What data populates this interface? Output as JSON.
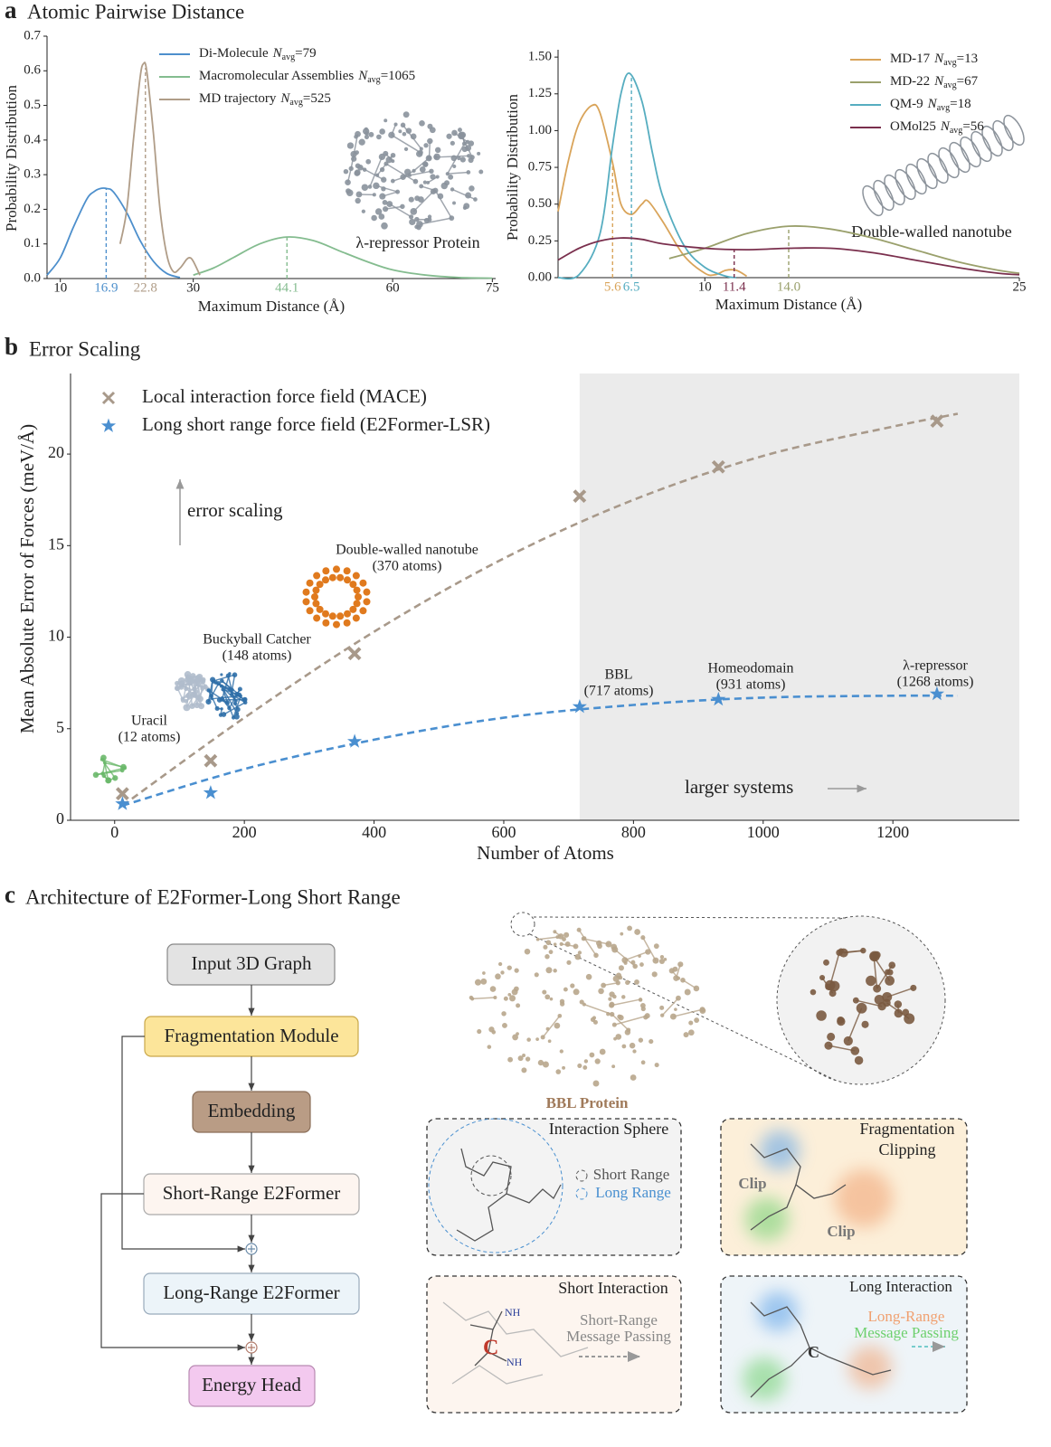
{
  "panels": [
    {
      "label": "a",
      "title": "Atomic Pairwise Distance"
    },
    {
      "label": "b",
      "title": "Error Scaling"
    },
    {
      "label": "c",
      "title": "Architecture of E2Former-Long Short Range"
    }
  ],
  "chart_data": [
    {
      "type": "line",
      "xlabel": "Maximum Distance (Å)",
      "ylabel": "Probability Distribution",
      "xlim": [
        8,
        75.5
      ],
      "ylim": [
        0,
        0.7
      ],
      "xticks": [
        10,
        30,
        60,
        75
      ],
      "yticks": [
        {
          "value": 0,
          "label": "0.0"
        },
        0.1,
        0.2,
        0.3,
        0.4,
        0.5,
        0.6,
        0.7
      ],
      "legend": "upper right",
      "n_label": {
        "symbol": "N",
        "subscript": "avg",
        "sign": "="
      },
      "annotations": [
        "λ-repressor Protein"
      ],
      "series": [
        {
          "name": "Di-Molecule",
          "n_avg": 79,
          "color": "#4d8fcc",
          "mean": 16.9,
          "x": [
            8,
            10,
            12,
            14,
            15,
            16,
            17,
            18,
            20,
            22,
            24,
            26,
            28
          ],
          "values": [
            0.01,
            0.06,
            0.15,
            0.23,
            0.25,
            0.26,
            0.26,
            0.25,
            0.19,
            0.11,
            0.05,
            0.015,
            0.003
          ]
        },
        {
          "name": "Macromolecular Assemblies",
          "n_avg": 1065,
          "color": "#84bc8f",
          "mean": 44.1,
          "x": [
            30,
            33,
            36,
            40,
            44,
            48,
            52,
            56,
            60,
            65,
            70,
            75
          ],
          "values": [
            0.01,
            0.03,
            0.06,
            0.1,
            0.12,
            0.11,
            0.08,
            0.05,
            0.025,
            0.01,
            0.003,
            0.001
          ]
        },
        {
          "name": "MD trajectory",
          "n_avg": 525,
          "color": "#b09d88",
          "mean": 22.8,
          "x": [
            19,
            20,
            21,
            22,
            22.5,
            23,
            24,
            25,
            26,
            27,
            28,
            29,
            29.5,
            30,
            31
          ],
          "values": [
            0.1,
            0.2,
            0.4,
            0.58,
            0.62,
            0.6,
            0.42,
            0.2,
            0.07,
            0.02,
            0.03,
            0.055,
            0.06,
            0.05,
            0.01
          ]
        }
      ]
    },
    {
      "type": "line",
      "xlabel": "Maximum Distance (Å)",
      "ylabel": "Probability Distribution",
      "xlim": [
        3,
        25
      ],
      "ylim": [
        0,
        1.55
      ],
      "xticks": [
        10,
        25
      ],
      "yticks": [
        {
          "value": 0,
          "label": "0.00"
        },
        0.25,
        {
          "value": 0.5,
          "label": "0.50"
        },
        0.75,
        {
          "value": 1,
          "label": "1.00"
        },
        1.25,
        {
          "value": 1.5,
          "label": "1.50"
        }
      ],
      "legend": "upper right",
      "n_label": {
        "symbol": "N",
        "subscript": "avg",
        "sign": "="
      },
      "annotations": [
        "Double-walled nanotube"
      ],
      "series": [
        {
          "name": "MD-17",
          "n_avg": 13,
          "color": "#d9a45a",
          "mean": 5.6,
          "x": [
            3,
            3.5,
            4,
            4.6,
            5,
            5.6,
            6,
            6.5,
            7,
            7.3,
            8,
            9,
            10,
            10.5,
            11,
            11.5,
            12
          ],
          "values": [
            0.45,
            0.8,
            1.05,
            1.17,
            1.12,
            0.78,
            0.5,
            0.43,
            0.5,
            0.52,
            0.38,
            0.15,
            0.03,
            0.02,
            0.05,
            0.05,
            0.01
          ]
        },
        {
          "name": "MD-22",
          "n_avg": 67,
          "color": "#9aa06c",
          "mean": 14.0,
          "mean_label": "14.0",
          "x": [
            8.3,
            10,
            12,
            14,
            16,
            18,
            20,
            22,
            24,
            25
          ],
          "values": [
            0.13,
            0.2,
            0.3,
            0.35,
            0.33,
            0.27,
            0.19,
            0.11,
            0.05,
            0.03
          ]
        },
        {
          "name": "QM-9",
          "n_avg": 18,
          "color": "#56adc0",
          "mean": 6.5,
          "x": [
            3,
            4,
            5,
            5.6,
            6,
            6.4,
            7,
            7.5,
            8,
            9,
            10,
            11,
            11.5
          ],
          "values": [
            0,
            0.02,
            0.3,
            0.9,
            1.25,
            1.39,
            1.2,
            0.85,
            0.55,
            0.22,
            0.07,
            0.01,
            0
          ]
        },
        {
          "name": "OMol25",
          "n_avg": 56,
          "color": "#7a2f4d",
          "mean": 11.4,
          "x": [
            3,
            4,
            5,
            6,
            7,
            8,
            10,
            12,
            14,
            16,
            18,
            20,
            22,
            24,
            25
          ],
          "values": [
            0.12,
            0.2,
            0.25,
            0.27,
            0.26,
            0.23,
            0.2,
            0.19,
            0.2,
            0.2,
            0.17,
            0.12,
            0.07,
            0.03,
            0.02
          ]
        }
      ]
    },
    {
      "type": "scatter",
      "xlabel": "Number of Atoms",
      "ylabel": "Mean Absolute Error of Forces (meV/Å)",
      "xlim": [
        -68,
        1395
      ],
      "ylim": [
        0,
        24.4
      ],
      "xticks": [
        0,
        200,
        400,
        600,
        800,
        1000,
        1200
      ],
      "yticks": [
        0,
        5,
        10,
        15,
        20
      ],
      "legend": "upper left",
      "shade_from": 717,
      "annotations": [
        "error scaling",
        "larger systems"
      ],
      "system_labels": [
        {
          "name": "Uracil",
          "atoms": "(12 atoms)"
        },
        {
          "name": "Buckyball Catcher",
          "atoms": "(148 atoms)"
        },
        {
          "name": "Double-walled nanotube",
          "atoms": "(370 atoms)"
        },
        {
          "name": "BBL",
          "atoms": "(717 atoms)"
        },
        {
          "name": "Homeodomain",
          "atoms": "(931 atoms)"
        },
        {
          "name": "λ-repressor",
          "atoms": "(1268 atoms)"
        }
      ],
      "series": [
        {
          "name": "Local interaction force field (MACE)",
          "marker": "x",
          "color": "#a8998a",
          "x": [
            12,
            148,
            370,
            717,
            931,
            1268
          ],
          "values": [
            1.45,
            3.25,
            9.1,
            17.7,
            19.3,
            21.8
          ],
          "fit": {
            "x": [
              12,
              200,
              400,
              600,
              800,
              1000,
              1200,
              1300
            ],
            "values": [
              0.8,
              5.6,
              10.3,
              14.3,
              17.5,
              19.9,
              21.5,
              22.2
            ]
          }
        },
        {
          "name": "Long short range force field (E2Former-LSR)",
          "marker": "star",
          "color": "#4a8fd0",
          "x": [
            12,
            148,
            370,
            717,
            931,
            1268
          ],
          "values": [
            0.9,
            1.5,
            4.3,
            6.2,
            6.6,
            6.9
          ],
          "fit": {
            "x": [
              12,
              200,
              400,
              600,
              800,
              1000,
              1200,
              1300
            ],
            "values": [
              0.8,
              2.8,
              4.4,
              5.6,
              6.3,
              6.7,
              6.8,
              6.8
            ]
          }
        }
      ]
    }
  ],
  "diagram": {
    "flow": [
      "Input 3D Graph",
      "Fragmentation Module",
      "Embedding",
      "Short-Range E2Former",
      "Long-Range E2Former",
      "Energy Head"
    ],
    "protein": "BBL Protein",
    "boxes": [
      {
        "title": [
          "Interaction Sphere"
        ],
        "labels": [
          "Short Range",
          "Long Range"
        ]
      },
      {
        "title": [
          "Fragmentation",
          "Clipping"
        ],
        "labels": [
          "Clip",
          "Clip"
        ]
      },
      {
        "title": [
          "Short Interaction"
        ],
        "labels": [
          "Short-Range",
          "Message Passing"
        ],
        "atoms": [
          "NH",
          "C",
          "NH"
        ]
      },
      {
        "title": [
          "Long Interaction"
        ],
        "labels": [
          "Long-Range",
          "Message Passing"
        ],
        "atoms": [
          "C"
        ]
      }
    ]
  }
}
